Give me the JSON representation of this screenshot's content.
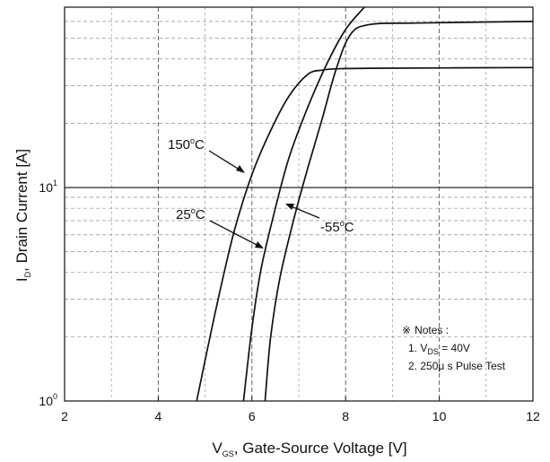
{
  "chart_data": {
    "type": "line",
    "x_scale": "linear",
    "y_scale": "log",
    "xlim": [
      2,
      12
    ],
    "ylim": [
      1,
      70
    ],
    "grid": true,
    "x_ticks": [
      2,
      4,
      6,
      8,
      10,
      12
    ],
    "x_tick_labels": [
      "2",
      "4",
      "6",
      "8",
      "10",
      "12"
    ],
    "y_ticks": [
      1,
      10
    ],
    "y_tick_labels": [
      {
        "base": "10",
        "exp": "0"
      },
      {
        "base": "10",
        "exp": "1"
      }
    ],
    "xlabel": {
      "main": "V",
      "sub": "GS",
      "rest": ", Gate-Source Voltage [V]"
    },
    "ylabel": {
      "main": "I",
      "sub": "D",
      "rest": ", Drain Current [A]"
    },
    "series": [
      {
        "name": "150°C",
        "label_main": "150",
        "label_sup": "o",
        "label_rest": "C",
        "x": [
          4.82,
          5.2,
          5.6,
          6.0,
          6.4,
          6.8,
          7.2,
          7.5,
          7.8,
          8.5,
          12
        ],
        "y": [
          1.0,
          2.5,
          6.0,
          11.5,
          18.5,
          27.0,
          34.0,
          35.5,
          36.0,
          36.2,
          36.5
        ]
      },
      {
        "name": "25°C",
        "label_main": "25",
        "label_sup": "o",
        "label_rest": "C",
        "x": [
          5.82,
          6.0,
          6.2,
          6.5,
          6.8,
          7.2,
          7.6,
          8.0,
          8.4
        ],
        "y": [
          1.0,
          2.2,
          4.2,
          8.0,
          14.0,
          24.0,
          38.0,
          55.0,
          72.0
        ]
      },
      {
        "name": "-55°C",
        "label_main": "-55",
        "label_sup": "o",
        "label_rest": "C",
        "x": [
          6.28,
          6.4,
          6.6,
          6.9,
          7.2,
          7.5,
          7.8,
          8.1,
          8.5,
          9.5,
          12
        ],
        "y": [
          1.0,
          2.0,
          3.8,
          7.2,
          12.5,
          21.0,
          36.0,
          52.0,
          58.0,
          59.0,
          60.0
        ]
      }
    ],
    "notes": {
      "symbol": "※",
      "title": "Notes :",
      "line1_prefix": "1. V",
      "line1_sub": "DS",
      "line1_rest": " = 40V",
      "line2": "2. 250μ s Pulse Test"
    }
  }
}
